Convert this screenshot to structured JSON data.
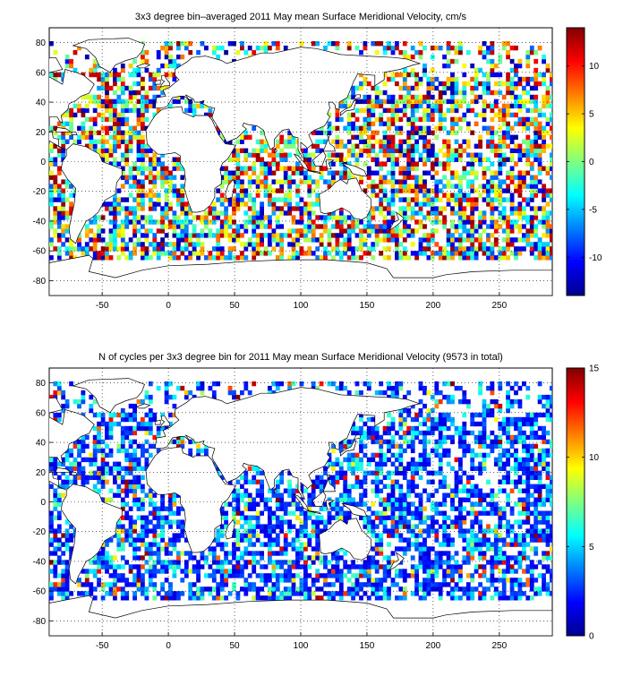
{
  "chart_data": [
    {
      "type": "heatmap",
      "title": "3x3 degree bin–averaged 2011 May mean Surface Meridional Velocity, cm/s",
      "xlabel": "",
      "ylabel": "",
      "xlim": [
        -90,
        290
      ],
      "ylim": [
        -90,
        90
      ],
      "xticks": [
        -50,
        0,
        50,
        100,
        150,
        200,
        250
      ],
      "yticks": [
        -80,
        -60,
        -40,
        -20,
        0,
        20,
        40,
        60,
        80
      ],
      "grid": true,
      "colorbar": {
        "range": [
          -14,
          14
        ],
        "ticks": [
          -10,
          -5,
          0,
          5,
          10
        ],
        "colormap": "jet"
      },
      "bin_size_deg": 3,
      "value_kind": "meridional_velocity_cm_s",
      "note_coverage": "bins covering the world ocean, roughly 65S to 80N"
    },
    {
      "type": "heatmap",
      "title": "N of cycles per 3x3 degree bin for 2011 May mean Surface Meridional Velocity (9573 in total)",
      "xlabel": "",
      "ylabel": "",
      "xlim": [
        -90,
        290
      ],
      "ylim": [
        -90,
        90
      ],
      "xticks": [
        -50,
        0,
        50,
        100,
        150,
        200,
        250
      ],
      "yticks": [
        -80,
        -60,
        -40,
        -20,
        0,
        20,
        40,
        60,
        80
      ],
      "grid": true,
      "colorbar": {
        "range": [
          0,
          15
        ],
        "ticks": [
          0,
          5,
          10,
          15
        ],
        "colormap": "jet"
      },
      "bin_size_deg": 3,
      "value_kind": "cycle_count"
    }
  ]
}
